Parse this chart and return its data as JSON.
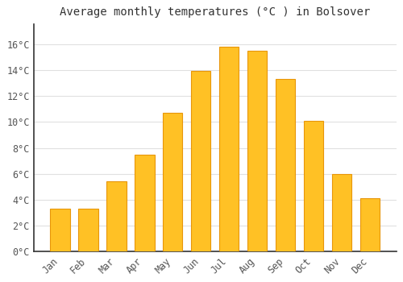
{
  "title": "Average monthly temperatures (°C ) in Bolsover",
  "months": [
    "Jan",
    "Feb",
    "Mar",
    "Apr",
    "May",
    "Jun",
    "Jul",
    "Aug",
    "Sep",
    "Oct",
    "Nov",
    "Dec"
  ],
  "values": [
    3.3,
    3.3,
    5.4,
    7.5,
    10.7,
    13.9,
    15.8,
    15.5,
    13.3,
    10.1,
    6.0,
    4.1
  ],
  "bar_color": "#FFC125",
  "bar_edge_color": "#E8960A",
  "background_color": "#FFFFFF",
  "grid_color": "#E0E0E0",
  "ylim": [
    0,
    17.5
  ],
  "yticks": [
    0,
    2,
    4,
    6,
    8,
    10,
    12,
    14,
    16
  ],
  "title_fontsize": 10,
  "tick_fontsize": 8.5
}
